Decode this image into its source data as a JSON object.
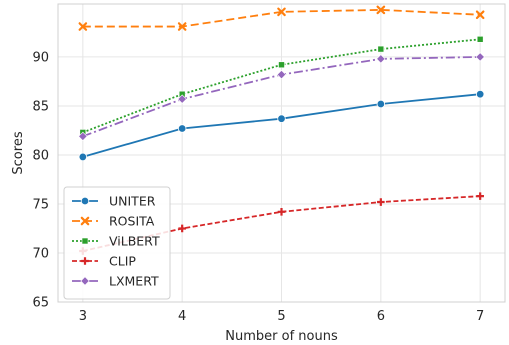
{
  "chart_data": {
    "type": "line",
    "xlabel": "Number of nouns",
    "ylabel": "Scores",
    "x": [
      3,
      4,
      5,
      6,
      7
    ],
    "xlim": [
      2.75,
      7.25
    ],
    "ylim": [
      65,
      95.4
    ],
    "yticks": [
      65,
      70,
      75,
      80,
      85,
      90
    ],
    "grid": true,
    "legend_position": "lower-left",
    "series": [
      {
        "name": "UNITER",
        "color": "#1f77b4",
        "dash": "",
        "marker": "circle",
        "values": [
          79.8,
          82.7,
          83.7,
          85.2,
          86.2
        ]
      },
      {
        "name": "ROSITA",
        "color": "#ff7f0e",
        "dash": "8,4",
        "marker": "x",
        "values": [
          93.1,
          93.1,
          94.6,
          94.8,
          94.3
        ]
      },
      {
        "name": "ViLBERT",
        "color": "#2ca02c",
        "dash": "2,2",
        "marker": "square",
        "values": [
          82.3,
          86.2,
          89.2,
          90.8,
          91.8
        ]
      },
      {
        "name": "CLIP",
        "color": "#d62728",
        "dash": "5,2.5",
        "marker": "plus",
        "values": [
          70.2,
          72.5,
          74.2,
          75.2,
          75.8
        ]
      },
      {
        "name": "LXMERT",
        "color": "#9467bd",
        "dash": "9,3,2,3",
        "marker": "diamond",
        "values": [
          81.9,
          85.7,
          88.2,
          89.8,
          90.0
        ]
      }
    ]
  }
}
